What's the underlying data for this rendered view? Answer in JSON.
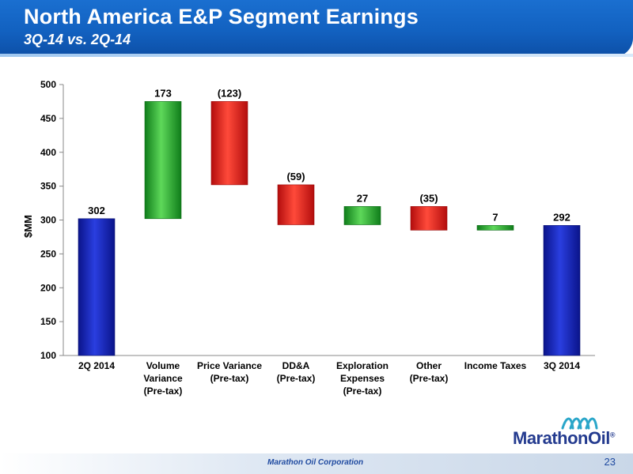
{
  "header": {
    "title": "North America E&P Segment Earnings",
    "subtitle": "3Q-14 vs. 2Q-14"
  },
  "colors": {
    "banner": "#1261c0",
    "total_bar": "#0f1fa8",
    "increase_bar": "#1ea82a",
    "decrease_bar": "#e01616"
  },
  "chart_data": {
    "type": "bar",
    "subtype": "waterfall",
    "ylabel": "$MM",
    "ylim": [
      100,
      500
    ],
    "yticks": [
      100,
      150,
      200,
      250,
      300,
      350,
      400,
      450,
      500
    ],
    "grid": false,
    "categories": [
      [
        "2Q 2014"
      ],
      [
        "Volume",
        "Variance",
        "(Pre-tax)"
      ],
      [
        "Price Variance",
        "(Pre-tax)"
      ],
      [
        "DD&A",
        "(Pre-tax)"
      ],
      [
        "Exploration",
        "Expenses",
        "(Pre-tax)"
      ],
      [
        "Other",
        "(Pre-tax)"
      ],
      [
        "Income Taxes"
      ],
      [
        "3Q 2014"
      ]
    ],
    "values": [
      302,
      173,
      -123,
      -59,
      27,
      -35,
      7,
      292
    ],
    "data_labels": [
      "302",
      "173",
      "(123)",
      "(59)",
      "27",
      "(35)",
      "7",
      "292"
    ],
    "bar_kinds": [
      "total",
      "increase",
      "decrease",
      "decrease",
      "increase",
      "decrease",
      "increase",
      "total"
    ]
  },
  "footer": {
    "company": "Marathon Oil Corporation",
    "page": "23"
  },
  "logo": {
    "text": "MarathonOil",
    "trademark": "®"
  }
}
